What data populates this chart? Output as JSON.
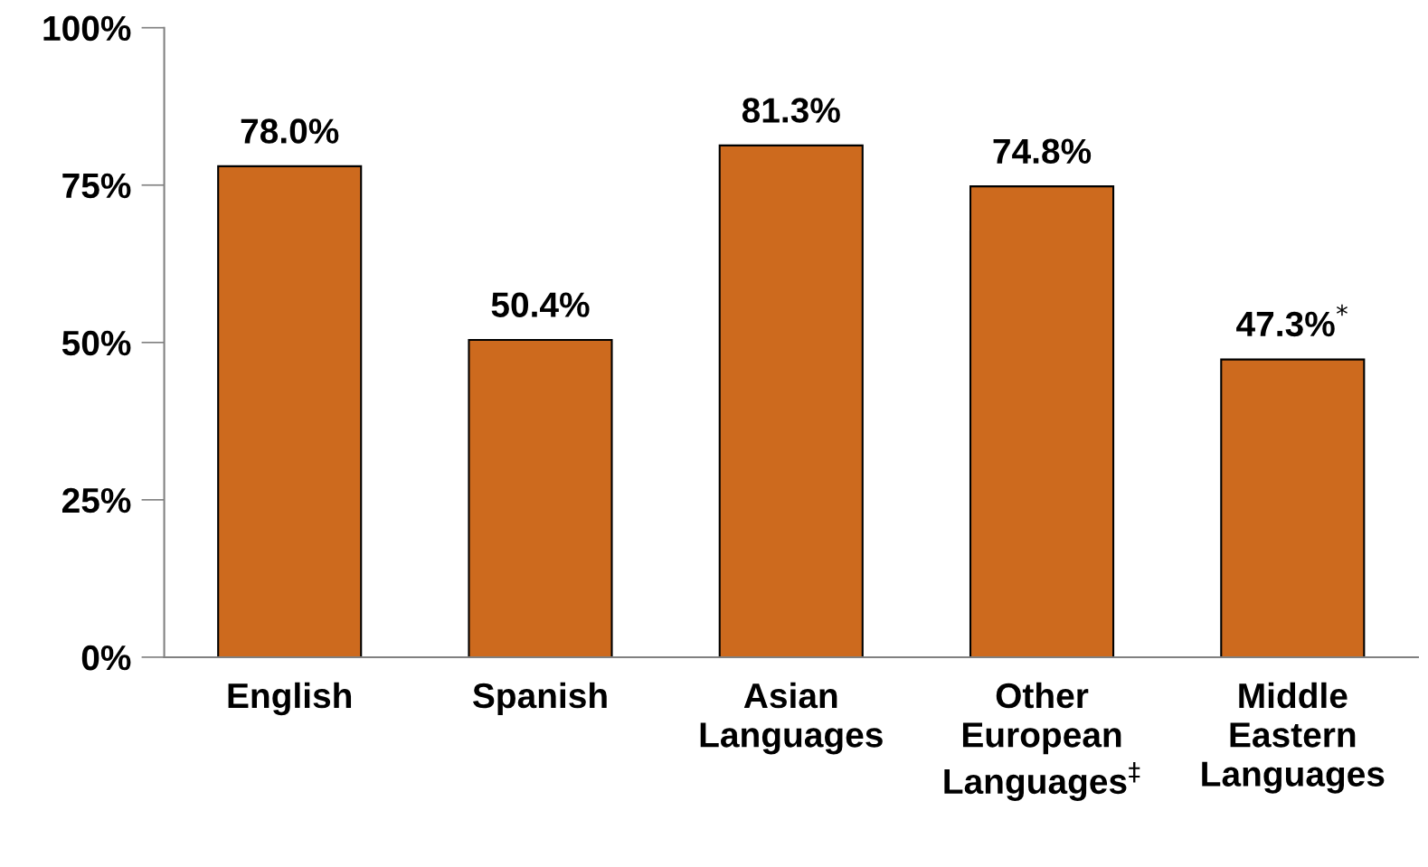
{
  "chart_data": {
    "type": "bar",
    "categories": [
      "English",
      "Spanish",
      "Asian\nLanguages",
      "Other\nEuropean\nLanguages$^{‡}$",
      "Middle\nEastern\nLanguages"
    ],
    "values": [
      78.0,
      50.4,
      81.3,
      74.8,
      47.3
    ],
    "value_labels": [
      "78.0%",
      "50.4%",
      "81.3%",
      "74.8%",
      "47.3%$^{*}$"
    ],
    "color": "#cd6a1e",
    "ylim": [
      0,
      100
    ],
    "yticks": [
      {
        "value": 0,
        "label": "0%"
      },
      {
        "value": 25,
        "label": "25%"
      },
      {
        "value": 50,
        "label": "50%"
      },
      {
        "value": 75,
        "label": "75%"
      },
      {
        "value": 100,
        "label": "100%"
      }
    ],
    "grid": false
  }
}
